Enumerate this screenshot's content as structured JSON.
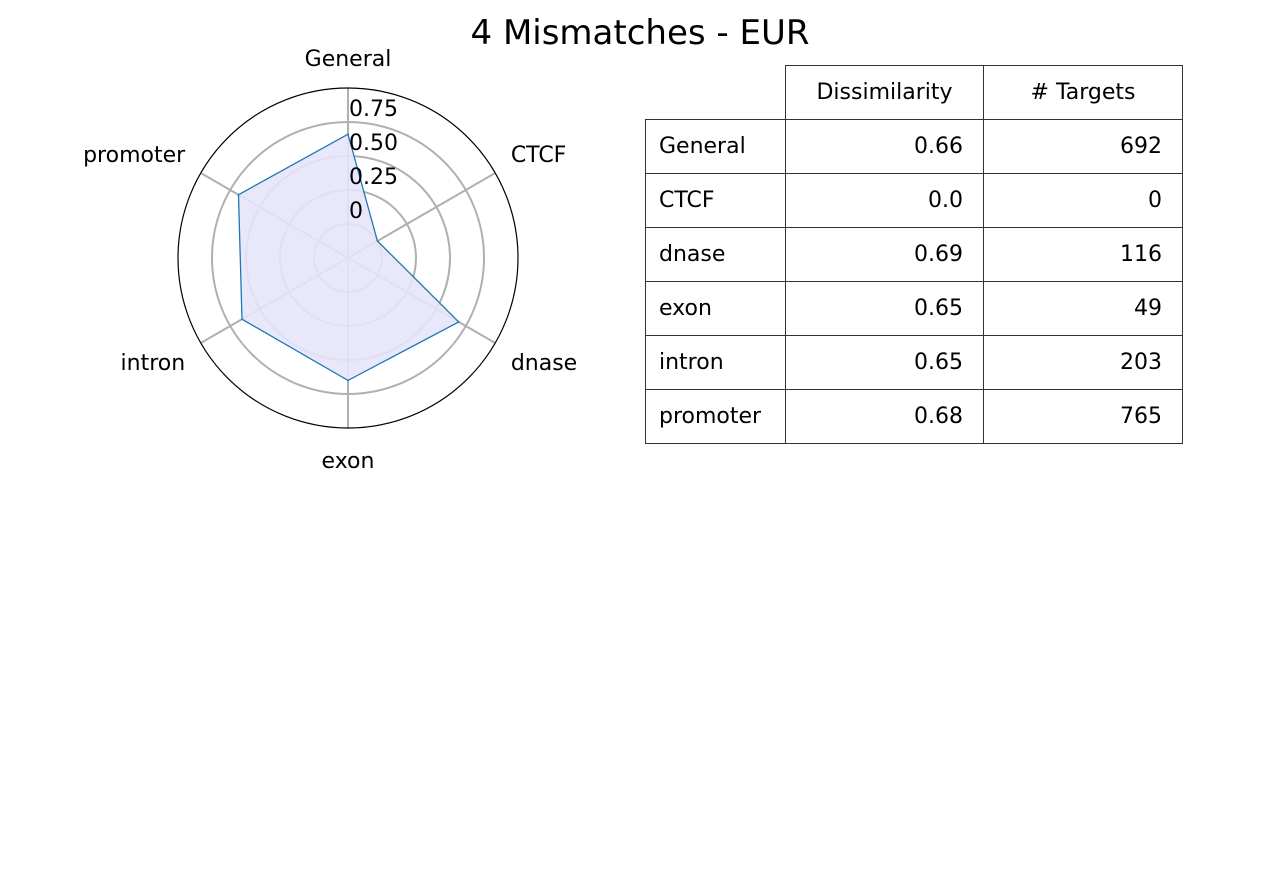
{
  "chart_data": [
    {
      "type": "radar",
      "title": "4 Mismatches - EUR",
      "categories": [
        "General",
        "CTCF",
        "dnase",
        "exon",
        "intron",
        "promoter"
      ],
      "values": [
        0.66,
        0.0,
        0.69,
        0.65,
        0.65,
        0.68
      ],
      "radial_ticks": [
        "0",
        "0.25",
        "0.50",
        "0.75"
      ],
      "radial_tick_values": [
        0,
        0.25,
        0.5,
        0.75
      ],
      "rlim": [
        -0.25,
        1.0
      ],
      "grid": true,
      "colors": {
        "line": "#1f77b4",
        "fill": "#e6e6fa",
        "grid": "#b0b0b0",
        "outline": "#000000"
      }
    },
    {
      "type": "table",
      "columns": [
        "",
        "Dissimilarity",
        "# Targets"
      ],
      "rows": [
        {
          "label": "General",
          "dissimilarity": "0.66",
          "targets": "692"
        },
        {
          "label": "CTCF",
          "dissimilarity": "0.0",
          "targets": "0"
        },
        {
          "label": "dnase",
          "dissimilarity": "0.69",
          "targets": "116"
        },
        {
          "label": "exon",
          "dissimilarity": "0.65",
          "targets": "49"
        },
        {
          "label": "intron",
          "dissimilarity": "0.65",
          "targets": "203"
        },
        {
          "label": "promoter",
          "dissimilarity": "0.68",
          "targets": "765"
        }
      ]
    }
  ]
}
